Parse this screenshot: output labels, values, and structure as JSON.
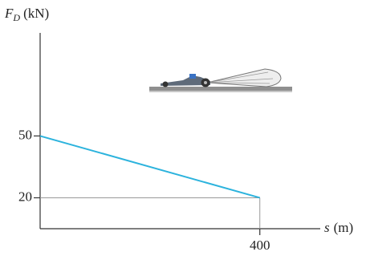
{
  "chart_data": {
    "type": "line",
    "y_label": {
      "symbol": "F",
      "subscript": "D",
      "unit": "(kN)"
    },
    "x_label": {
      "symbol": "s",
      "unit": "(m)"
    },
    "x": [
      0,
      400
    ],
    "series": [
      {
        "color": "#2cb3dd",
        "values": [
          50,
          20
        ]
      }
    ],
    "xlim": [
      0,
      510
    ],
    "ylim": [
      5,
      100
    ],
    "xticks": [
      400
    ],
    "yticks": [
      20,
      50
    ]
  }
}
